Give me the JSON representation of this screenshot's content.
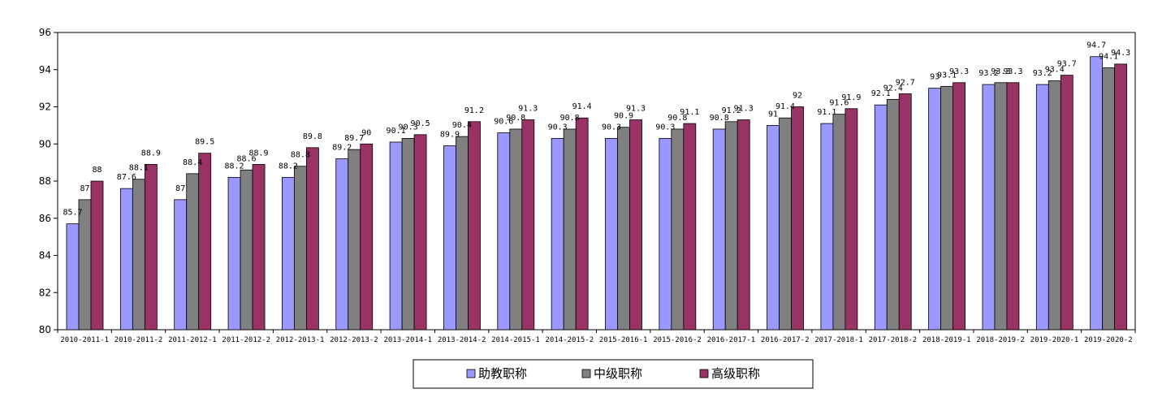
{
  "chart_data": {
    "type": "bar",
    "title": "",
    "xlabel": "",
    "ylabel": "",
    "ylim": [
      80,
      96
    ],
    "yticks": [
      80,
      82,
      84,
      86,
      88,
      90,
      92,
      94,
      96
    ],
    "grid": false,
    "legend": "bottom-center",
    "categories": [
      "2010-2011-1",
      "2010-2011-2",
      "2011-2012-1",
      "2011-2012-2",
      "2012-2013-1",
      "2012-2013-2",
      "2013-2014-1",
      "2013-2014-2",
      "2014-2015-1",
      "2014-2015-2",
      "2015-2016-1",
      "2015-2016-2",
      "2016-2017-1",
      "2016-2017-2",
      "2017-2018-1",
      "2017-2018-2",
      "2018-2019-1",
      "2018-2019-2",
      "2019-2020-1",
      "2019-2020-2"
    ],
    "series": [
      {
        "name": "助教职称",
        "color": "#9999ff",
        "values": [
          85.7,
          87.6,
          87,
          88.2,
          88.2,
          89.2,
          90.1,
          89.9,
          90.6,
          90.3,
          90.3,
          90.3,
          90.8,
          91,
          91.1,
          92.1,
          93,
          93.2,
          93.2,
          94.7
        ]
      },
      {
        "name": "中级职称",
        "color": "#808080",
        "values": [
          87,
          88.1,
          88.4,
          88.6,
          88.8,
          89.7,
          90.3,
          90.4,
          90.8,
          90.8,
          90.9,
          90.8,
          91.2,
          91.4,
          91.6,
          92.4,
          93.1,
          93.3,
          93.4,
          94.1
        ]
      },
      {
        "name": "高级职称",
        "color": "#993366",
        "values": [
          88,
          88.9,
          89.5,
          88.9,
          89.8,
          90,
          90.5,
          91.2,
          91.3,
          91.4,
          91.3,
          91.1,
          91.3,
          92,
          91.9,
          92.7,
          93.3,
          93.3,
          93.7,
          94.3
        ]
      }
    ]
  }
}
